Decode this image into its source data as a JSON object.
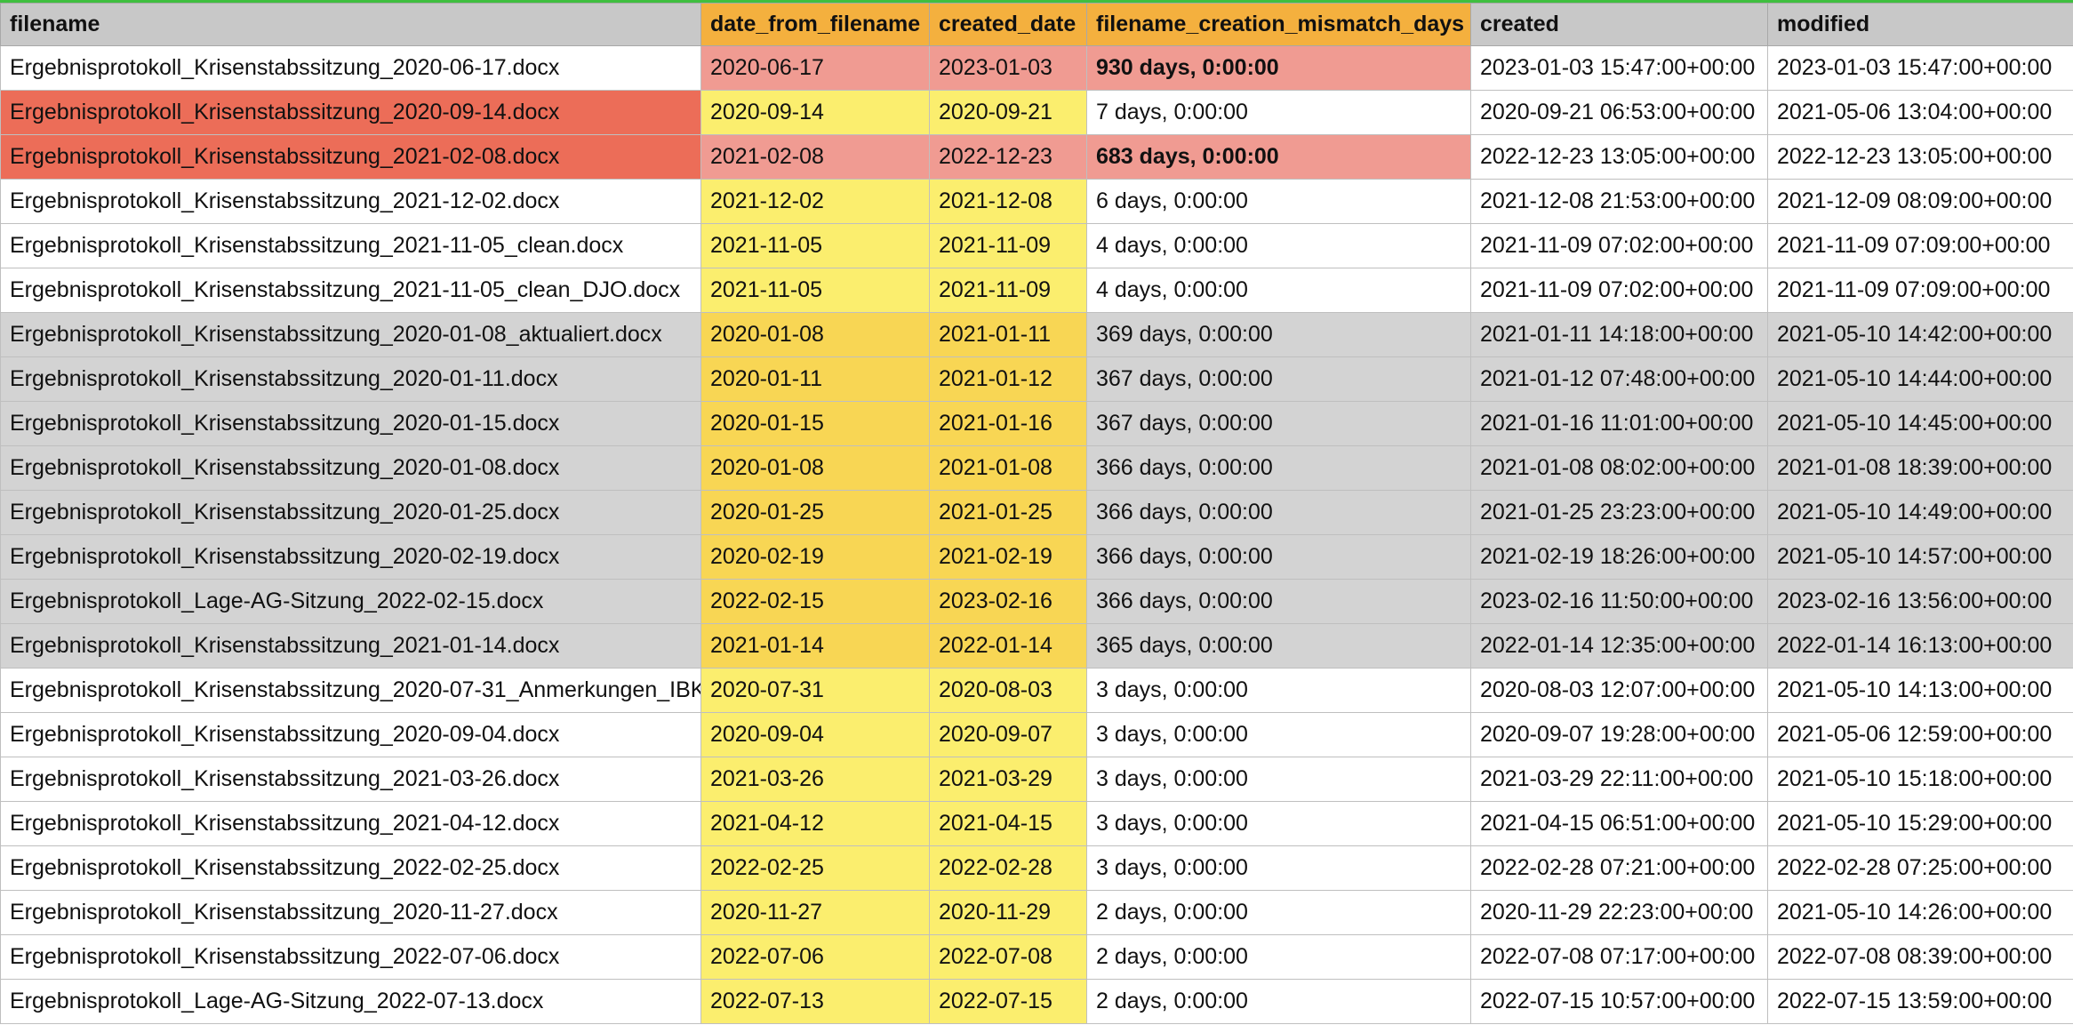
{
  "colors": {
    "header_bg": "#c8c8c8",
    "header_highlight": "#f4b03e",
    "row_white": "#ffffff",
    "row_gray": "#d3d3d3",
    "row_red": "#ec6d58",
    "cell_pink": "#f09b92",
    "cell_yellow": "#fbee6e",
    "cell_gold": "#f8d654",
    "selection_border": "#3fbf3f"
  },
  "table": {
    "columns": [
      {
        "key": "filename",
        "label": "filename",
        "highlight": false
      },
      {
        "key": "date_from_filename",
        "label": "date_from_filename",
        "highlight": true
      },
      {
        "key": "created_date",
        "label": "created_date",
        "highlight": true
      },
      {
        "key": "filename_creation_mismatch_days",
        "label": "filename_creation_mismatch_days",
        "highlight": true
      },
      {
        "key": "created",
        "label": "created",
        "highlight": false
      },
      {
        "key": "modified",
        "label": "modified",
        "highlight": false
      }
    ],
    "rows": [
      {
        "filename": "Ergebnisprotokoll_Krisenstabssitzung_2020-06-17.docx",
        "date_from_filename": "2020-06-17",
        "created_date": "2023-01-03",
        "mismatch": "930 days, 0:00:00",
        "created": "2023-01-03 15:47:00+00:00",
        "modified": "2023-01-03 15:47:00+00:00",
        "fills": {
          "filename": "row_white",
          "date_from_filename": "cell_pink",
          "created_date": "cell_pink",
          "mismatch": "cell_pink",
          "created": "row_white",
          "modified": "row_white"
        },
        "mismatch_bold": true
      },
      {
        "filename": "Ergebnisprotokoll_Krisenstabssitzung_2020-09-14.docx",
        "date_from_filename": "2020-09-14",
        "created_date": "2020-09-21",
        "mismatch": "7 days, 0:00:00",
        "created": "2020-09-21 06:53:00+00:00",
        "modified": "2021-05-06 13:04:00+00:00",
        "fills": {
          "filename": "row_red",
          "date_from_filename": "cell_yellow",
          "created_date": "cell_yellow",
          "mismatch": "row_white",
          "created": "row_white",
          "modified": "row_white"
        },
        "mismatch_bold": false
      },
      {
        "filename": "Ergebnisprotokoll_Krisenstabssitzung_2021-02-08.docx",
        "date_from_filename": "2021-02-08",
        "created_date": "2022-12-23",
        "mismatch": "683 days, 0:00:00",
        "created": "2022-12-23 13:05:00+00:00",
        "modified": "2022-12-23 13:05:00+00:00",
        "fills": {
          "filename": "row_red",
          "date_from_filename": "cell_pink",
          "created_date": "cell_pink",
          "mismatch": "cell_pink",
          "created": "row_white",
          "modified": "row_white"
        },
        "mismatch_bold": true
      },
      {
        "filename": "Ergebnisprotokoll_Krisenstabssitzung_2021-12-02.docx",
        "date_from_filename": "2021-12-02",
        "created_date": "2021-12-08",
        "mismatch": "6 days, 0:00:00",
        "created": "2021-12-08 21:53:00+00:00",
        "modified": "2021-12-09 08:09:00+00:00",
        "fills": {
          "filename": "row_white",
          "date_from_filename": "cell_yellow",
          "created_date": "cell_yellow",
          "mismatch": "row_white",
          "created": "row_white",
          "modified": "row_white"
        },
        "mismatch_bold": false
      },
      {
        "filename": "Ergebnisprotokoll_Krisenstabssitzung_2021-11-05_clean.docx",
        "date_from_filename": "2021-11-05",
        "created_date": "2021-11-09",
        "mismatch": "4 days, 0:00:00",
        "created": "2021-11-09 07:02:00+00:00",
        "modified": "2021-11-09 07:09:00+00:00",
        "fills": {
          "filename": "row_white",
          "date_from_filename": "cell_yellow",
          "created_date": "cell_yellow",
          "mismatch": "row_white",
          "created": "row_white",
          "modified": "row_white"
        },
        "mismatch_bold": false
      },
      {
        "filename": "Ergebnisprotokoll_Krisenstabssitzung_2021-11-05_clean_DJO.docx",
        "date_from_filename": "2021-11-05",
        "created_date": "2021-11-09",
        "mismatch": "4 days, 0:00:00",
        "created": "2021-11-09 07:02:00+00:00",
        "modified": "2021-11-09 07:09:00+00:00",
        "fills": {
          "filename": "row_white",
          "date_from_filename": "cell_yellow",
          "created_date": "cell_yellow",
          "mismatch": "row_white",
          "created": "row_white",
          "modified": "row_white"
        },
        "mismatch_bold": false
      },
      {
        "filename": "Ergebnisprotokoll_Krisenstabssitzung_2020-01-08_aktualiert.docx",
        "date_from_filename": "2020-01-08",
        "created_date": "2021-01-11",
        "mismatch": "369 days, 0:00:00",
        "created": "2021-01-11 14:18:00+00:00",
        "modified": "2021-05-10 14:42:00+00:00",
        "fills": {
          "filename": "row_gray",
          "date_from_filename": "cell_gold",
          "created_date": "cell_gold",
          "mismatch": "row_gray",
          "created": "row_gray",
          "modified": "row_gray"
        },
        "mismatch_bold": false
      },
      {
        "filename": "Ergebnisprotokoll_Krisenstabssitzung_2020-01-11.docx",
        "date_from_filename": "2020-01-11",
        "created_date": "2021-01-12",
        "mismatch": "367 days, 0:00:00",
        "created": "2021-01-12 07:48:00+00:00",
        "modified": "2021-05-10 14:44:00+00:00",
        "fills": {
          "filename": "row_gray",
          "date_from_filename": "cell_gold",
          "created_date": "cell_gold",
          "mismatch": "row_gray",
          "created": "row_gray",
          "modified": "row_gray"
        },
        "mismatch_bold": false
      },
      {
        "filename": "Ergebnisprotokoll_Krisenstabssitzung_2020-01-15.docx",
        "date_from_filename": "2020-01-15",
        "created_date": "2021-01-16",
        "mismatch": "367 days, 0:00:00",
        "created": "2021-01-16 11:01:00+00:00",
        "modified": "2021-05-10 14:45:00+00:00",
        "fills": {
          "filename": "row_gray",
          "date_from_filename": "cell_gold",
          "created_date": "cell_gold",
          "mismatch": "row_gray",
          "created": "row_gray",
          "modified": "row_gray"
        },
        "mismatch_bold": false
      },
      {
        "filename": "Ergebnisprotokoll_Krisenstabssitzung_2020-01-08.docx",
        "date_from_filename": "2020-01-08",
        "created_date": "2021-01-08",
        "mismatch": "366 days, 0:00:00",
        "created": "2021-01-08 08:02:00+00:00",
        "modified": "2021-01-08 18:39:00+00:00",
        "fills": {
          "filename": "row_gray",
          "date_from_filename": "cell_gold",
          "created_date": "cell_gold",
          "mismatch": "row_gray",
          "created": "row_gray",
          "modified": "row_gray"
        },
        "mismatch_bold": false
      },
      {
        "filename": "Ergebnisprotokoll_Krisenstabssitzung_2020-01-25.docx",
        "date_from_filename": "2020-01-25",
        "created_date": "2021-01-25",
        "mismatch": "366 days, 0:00:00",
        "created": "2021-01-25 23:23:00+00:00",
        "modified": "2021-05-10 14:49:00+00:00",
        "fills": {
          "filename": "row_gray",
          "date_from_filename": "cell_gold",
          "created_date": "cell_gold",
          "mismatch": "row_gray",
          "created": "row_gray",
          "modified": "row_gray"
        },
        "mismatch_bold": false
      },
      {
        "filename": "Ergebnisprotokoll_Krisenstabssitzung_2020-02-19.docx",
        "date_from_filename": "2020-02-19",
        "created_date": "2021-02-19",
        "mismatch": "366 days, 0:00:00",
        "created": "2021-02-19 18:26:00+00:00",
        "modified": "2021-05-10 14:57:00+00:00",
        "fills": {
          "filename": "row_gray",
          "date_from_filename": "cell_gold",
          "created_date": "cell_gold",
          "mismatch": "row_gray",
          "created": "row_gray",
          "modified": "row_gray"
        },
        "mismatch_bold": false
      },
      {
        "filename": "Ergebnisprotokoll_Lage-AG-Sitzung_2022-02-15.docx",
        "date_from_filename": "2022-02-15",
        "created_date": "2023-02-16",
        "mismatch": "366 days, 0:00:00",
        "created": "2023-02-16 11:50:00+00:00",
        "modified": "2023-02-16 13:56:00+00:00",
        "fills": {
          "filename": "row_gray",
          "date_from_filename": "cell_gold",
          "created_date": "cell_gold",
          "mismatch": "row_gray",
          "created": "row_gray",
          "modified": "row_gray"
        },
        "mismatch_bold": false
      },
      {
        "filename": "Ergebnisprotokoll_Krisenstabssitzung_2021-01-14.docx",
        "date_from_filename": "2021-01-14",
        "created_date": "2022-01-14",
        "mismatch": "365 days, 0:00:00",
        "created": "2022-01-14 12:35:00+00:00",
        "modified": "2022-01-14 16:13:00+00:00",
        "fills": {
          "filename": "row_gray",
          "date_from_filename": "cell_gold",
          "created_date": "cell_gold",
          "mismatch": "row_gray",
          "created": "row_gray",
          "modified": "row_gray"
        },
        "mismatch_bold": false
      },
      {
        "filename": "Ergebnisprotokoll_Krisenstabssitzung_2020-07-31_Anmerkungen_IBK",
        "date_from_filename": "2020-07-31",
        "created_date": "2020-08-03",
        "mismatch": "3 days, 0:00:00",
        "created": "2020-08-03 12:07:00+00:00",
        "modified": "2021-05-10 14:13:00+00:00",
        "fills": {
          "filename": "row_white",
          "date_from_filename": "cell_yellow",
          "created_date": "cell_yellow",
          "mismatch": "row_white",
          "created": "row_white",
          "modified": "row_white"
        },
        "mismatch_bold": false
      },
      {
        "filename": "Ergebnisprotokoll_Krisenstabssitzung_2020-09-04.docx",
        "date_from_filename": "2020-09-04",
        "created_date": "2020-09-07",
        "mismatch": "3 days, 0:00:00",
        "created": "2020-09-07 19:28:00+00:00",
        "modified": "2021-05-06 12:59:00+00:00",
        "fills": {
          "filename": "row_white",
          "date_from_filename": "cell_yellow",
          "created_date": "cell_yellow",
          "mismatch": "row_white",
          "created": "row_white",
          "modified": "row_white"
        },
        "mismatch_bold": false
      },
      {
        "filename": "Ergebnisprotokoll_Krisenstabssitzung_2021-03-26.docx",
        "date_from_filename": "2021-03-26",
        "created_date": "2021-03-29",
        "mismatch": "3 days, 0:00:00",
        "created": "2021-03-29 22:11:00+00:00",
        "modified": "2021-05-10 15:18:00+00:00",
        "fills": {
          "filename": "row_white",
          "date_from_filename": "cell_yellow",
          "created_date": "cell_yellow",
          "mismatch": "row_white",
          "created": "row_white",
          "modified": "row_white"
        },
        "mismatch_bold": false
      },
      {
        "filename": "Ergebnisprotokoll_Krisenstabssitzung_2021-04-12.docx",
        "date_from_filename": "2021-04-12",
        "created_date": "2021-04-15",
        "mismatch": "3 days, 0:00:00",
        "created": "2021-04-15 06:51:00+00:00",
        "modified": "2021-05-10 15:29:00+00:00",
        "fills": {
          "filename": "row_white",
          "date_from_filename": "cell_yellow",
          "created_date": "cell_yellow",
          "mismatch": "row_white",
          "created": "row_white",
          "modified": "row_white"
        },
        "mismatch_bold": false
      },
      {
        "filename": "Ergebnisprotokoll_Krisenstabssitzung_2022-02-25.docx",
        "date_from_filename": "2022-02-25",
        "created_date": "2022-02-28",
        "mismatch": "3 days, 0:00:00",
        "created": "2022-02-28 07:21:00+00:00",
        "modified": "2022-02-28 07:25:00+00:00",
        "fills": {
          "filename": "row_white",
          "date_from_filename": "cell_yellow",
          "created_date": "cell_yellow",
          "mismatch": "row_white",
          "created": "row_white",
          "modified": "row_white"
        },
        "mismatch_bold": false
      },
      {
        "filename": "Ergebnisprotokoll_Krisenstabssitzung_2020-11-27.docx",
        "date_from_filename": "2020-11-27",
        "created_date": "2020-11-29",
        "mismatch": "2 days, 0:00:00",
        "created": "2020-11-29 22:23:00+00:00",
        "modified": "2021-05-10 14:26:00+00:00",
        "fills": {
          "filename": "row_white",
          "date_from_filename": "cell_yellow",
          "created_date": "cell_yellow",
          "mismatch": "row_white",
          "created": "row_white",
          "modified": "row_white"
        },
        "mismatch_bold": false
      },
      {
        "filename": "Ergebnisprotokoll_Krisenstabssitzung_2022-07-06.docx",
        "date_from_filename": "2022-07-06",
        "created_date": "2022-07-08",
        "mismatch": "2 days, 0:00:00",
        "created": "2022-07-08 07:17:00+00:00",
        "modified": "2022-07-08 08:39:00+00:00",
        "fills": {
          "filename": "row_white",
          "date_from_filename": "cell_yellow",
          "created_date": "cell_yellow",
          "mismatch": "row_white",
          "created": "row_white",
          "modified": "row_white"
        },
        "mismatch_bold": false
      },
      {
        "filename": "Ergebnisprotokoll_Lage-AG-Sitzung_2022-07-13.docx",
        "date_from_filename": "2022-07-13",
        "created_date": "2022-07-15",
        "mismatch": "2 days, 0:00:00",
        "created": "2022-07-15 10:57:00+00:00",
        "modified": "2022-07-15 13:59:00+00:00",
        "fills": {
          "filename": "row_white",
          "date_from_filename": "cell_yellow",
          "created_date": "cell_yellow",
          "mismatch": "row_white",
          "created": "row_white",
          "modified": "row_white"
        },
        "mismatch_bold": false
      }
    ]
  }
}
